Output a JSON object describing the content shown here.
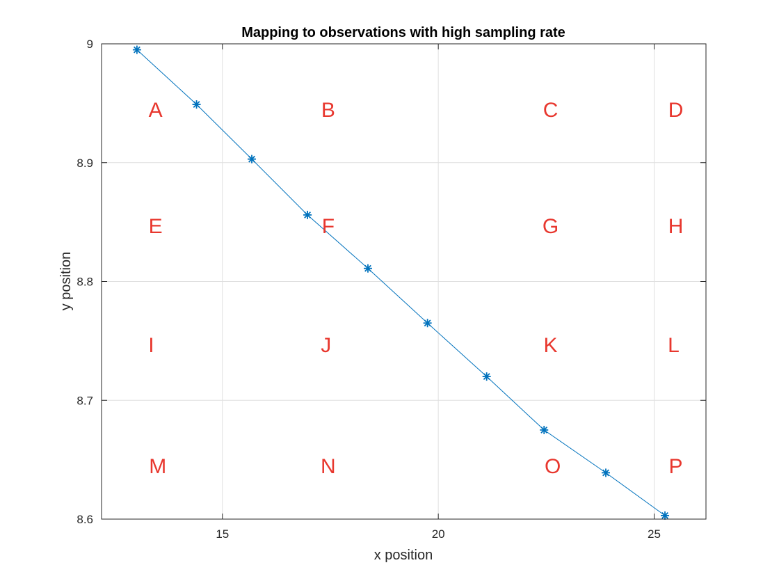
{
  "chart_data": {
    "type": "line",
    "title": "Mapping to observations with high sampling rate",
    "xlabel": "x position",
    "ylabel": "y position",
    "xlim": [
      12.2,
      26.2
    ],
    "ylim": [
      8.6,
      9.0
    ],
    "xticks": [
      15,
      20,
      25
    ],
    "yticks": [
      8.6,
      8.7,
      8.8,
      8.9,
      9.0
    ],
    "xtick_labels": [
      "15",
      "20",
      "25"
    ],
    "ytick_labels": [
      "8.6",
      "8.7",
      "8.8",
      "8.9",
      "9"
    ],
    "grid": true,
    "series": [
      {
        "marker": "asterisk",
        "color": "#0072BD",
        "x": [
          13.02,
          14.4,
          15.68,
          16.97,
          18.37,
          19.75,
          21.12,
          22.45,
          23.88,
          25.25
        ],
        "y": [
          8.995,
          8.949,
          8.903,
          8.856,
          8.811,
          8.765,
          8.72,
          8.675,
          8.639,
          8.603
        ]
      }
    ],
    "annotations": {
      "color": "#E8372E",
      "items": [
        {
          "text": "A",
          "x": 13.45,
          "y": 8.945
        },
        {
          "text": "B",
          "x": 17.45,
          "y": 8.945
        },
        {
          "text": "C",
          "x": 22.6,
          "y": 8.945
        },
        {
          "text": "D",
          "x": 25.5,
          "y": 8.945
        },
        {
          "text": "E",
          "x": 13.45,
          "y": 8.847
        },
        {
          "text": "F",
          "x": 17.45,
          "y": 8.847
        },
        {
          "text": "G",
          "x": 22.6,
          "y": 8.847
        },
        {
          "text": "H",
          "x": 25.5,
          "y": 8.847
        },
        {
          "text": "I",
          "x": 13.35,
          "y": 8.747
        },
        {
          "text": "J",
          "x": 17.4,
          "y": 8.747
        },
        {
          "text": "K",
          "x": 22.6,
          "y": 8.747
        },
        {
          "text": "L",
          "x": 25.45,
          "y": 8.747
        },
        {
          "text": "M",
          "x": 13.5,
          "y": 8.645
        },
        {
          "text": "N",
          "x": 17.45,
          "y": 8.645
        },
        {
          "text": "O",
          "x": 22.65,
          "y": 8.645
        },
        {
          "text": "P",
          "x": 25.5,
          "y": 8.645
        }
      ]
    }
  }
}
